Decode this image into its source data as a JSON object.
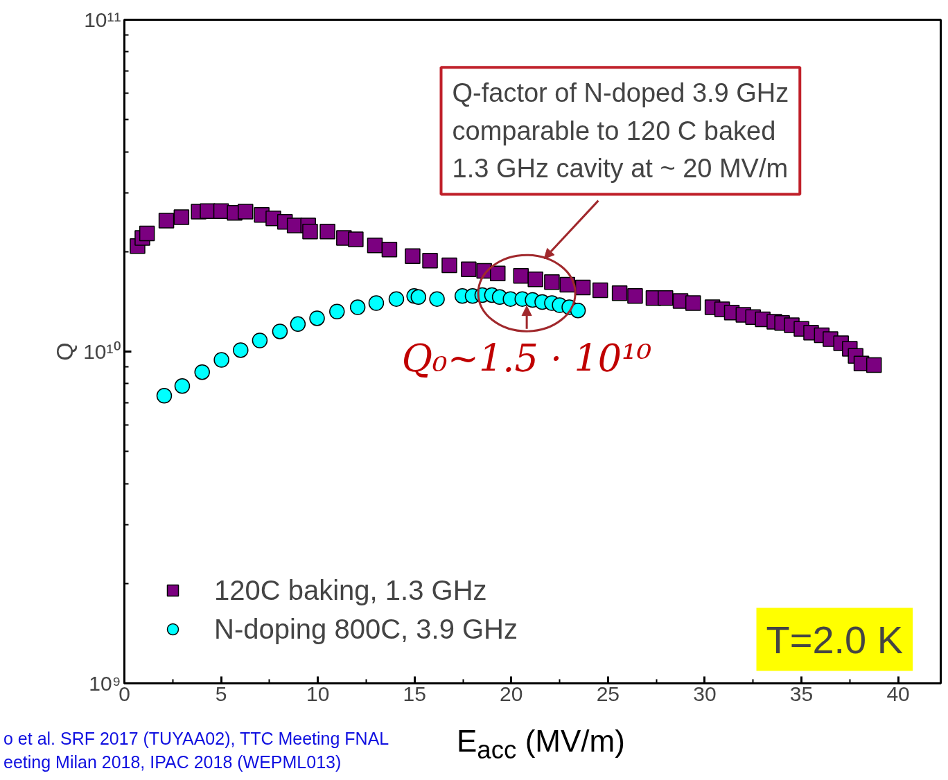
{
  "chart_data": {
    "type": "scatter",
    "xlabel": "E$_{acc}$ (MV/m)",
    "ylabel": "Q",
    "xlim": [
      0,
      42.2
    ],
    "xticks": [
      0,
      5,
      10,
      15,
      20,
      25,
      30,
      35,
      40
    ],
    "ylim": [
      1000000000.0,
      100000000000.0
    ],
    "yticks": [
      {
        "value": 1000000000.0,
        "label": "10⁹"
      },
      {
        "value": 10000000000.0,
        "label": "10¹⁰"
      },
      {
        "value": 100000000000.0,
        "label": "10¹¹"
      }
    ],
    "log": "y",
    "grid": false,
    "legend": "bottom left",
    "series": [
      {
        "name": "120C baking, 1.3 GHz",
        "color": "#7b0080",
        "marker": "square",
        "x": [
          0.68,
          0.93,
          1.17,
          2.17,
          2.95,
          3.84,
          4.3,
          5.0,
          5.7,
          6.26,
          7.1,
          7.7,
          8.3,
          8.8,
          9.5,
          9.6,
          10.5,
          11.35,
          11.96,
          12.95,
          13.7,
          14.9,
          15.8,
          16.8,
          17.8,
          18.6,
          19.3,
          20.5,
          21.25,
          22.1,
          22.9,
          23.7,
          24.6,
          25.6,
          26.4,
          27.35,
          27.97,
          28.75,
          29.4,
          30.4,
          30.9,
          31.4,
          32.0,
          32.5,
          33.0,
          33.6,
          34.0,
          34.5,
          35.0,
          35.5,
          36.05,
          36.5,
          37.05,
          37.5,
          37.8,
          38.1,
          38.75
        ],
        "values": [
          20800000000.0,
          22000000000.0,
          22700000000.0,
          24800000000.0,
          25400000000.0,
          26400000000.0,
          26500000000.0,
          26500000000.0,
          26200000000.0,
          26400000000.0,
          25800000000.0,
          25200000000.0,
          24600000000.0,
          24000000000.0,
          24000000000.0,
          23000000000.0,
          23000000000.0,
          22000000000.0,
          21800000000.0,
          20900000000.0,
          20300000000.0,
          19400000000.0,
          18800000000.0,
          18200000000.0,
          17700000000.0,
          17500000000.0,
          17200000000.0,
          16900000000.0,
          16500000000.0,
          16200000000.0,
          15900000000.0,
          15600000000.0,
          15300000000.0,
          15000000000.0,
          14700000000.0,
          14500000000.0,
          14500000000.0,
          14200000000.0,
          14000000000.0,
          13600000000.0,
          13400000000.0,
          13100000000.0,
          12900000000.0,
          12700000000.0,
          12500000000.0,
          12300000000.0,
          12200000000.0,
          12000000000.0,
          11700000000.0,
          11400000000.0,
          11200000000.0,
          10900000000.0,
          10600000000.0,
          10200000000.0,
          9700000000.0,
          9200000000.0,
          9100000000.0
        ]
      },
      {
        "name": "N-doping 800C, 3.9 GHz",
        "color": "#00ffff",
        "marker": "circle",
        "x": [
          2.06,
          2.99,
          4.02,
          5.02,
          6.01,
          7.0,
          8.04,
          8.97,
          9.96,
          10.99,
          12.06,
          13.02,
          14.06,
          14.98,
          15.2,
          16.16,
          17.47,
          18.0,
          18.5,
          19.0,
          19.4,
          19.96,
          20.57,
          21.1,
          21.6,
          22.1,
          22.5,
          23.0,
          23.45
        ],
        "values": [
          7360000000.0,
          7870000000.0,
          8670000000.0,
          9440000000.0,
          10100000000.0,
          10800000000.0,
          11500000000.0,
          12100000000.0,
          12600000000.0,
          13200000000.0,
          13600000000.0,
          14000000000.0,
          14400000000.0,
          14700000000.0,
          14600000000.0,
          14400000000.0,
          14700000000.0,
          14700000000.0,
          14800000000.0,
          14800000000.0,
          14600000000.0,
          14400000000.0,
          14400000000.0,
          14300000000.0,
          14100000000.0,
          14000000000.0,
          13800000000.0,
          13600000000.0,
          13300000000.0
        ]
      }
    ],
    "annotations": [
      "Q-factor of N-doped 3.9 GHz comparable to 120 C baked 1.3 GHz cavity at ~ 20 MV/m",
      {
        "text": "Q₀~1.5 · 10¹⁰",
        "x": 20.8,
        "y": 15000000000.0
      },
      "T=2.0 K",
      "o et al. SRF 2017 (TUYAA02), TTC Meeting FNAL",
      "eeting Milan 2018, IPAC 2018 (WEPML013)"
    ]
  }
}
